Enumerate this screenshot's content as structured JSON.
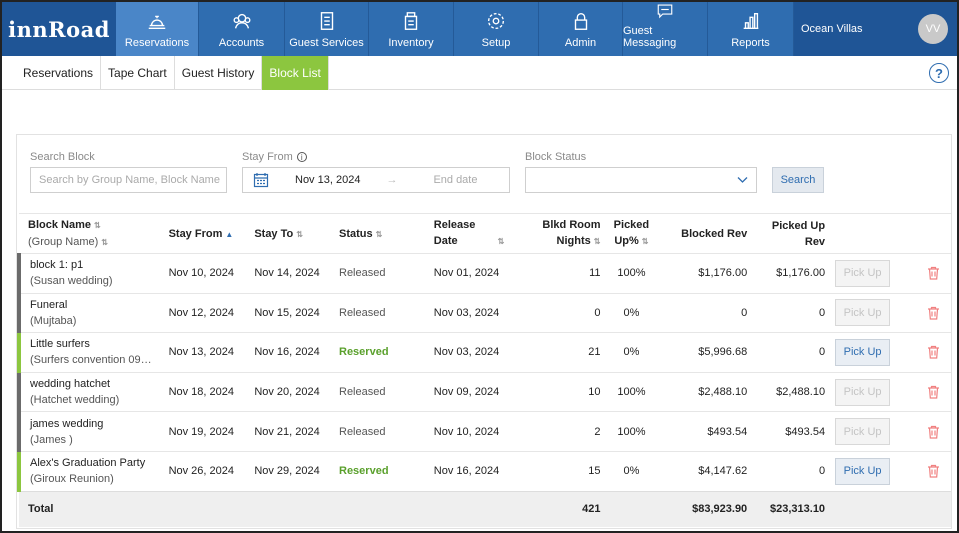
{
  "brand": {
    "logo": "innRoad",
    "property": "Ocean Villas",
    "avatar": "VV",
    "accent": "#2f6db0",
    "green": "#8cc63f"
  },
  "nav": [
    {
      "label": "Reservations",
      "icon": "bell-icon",
      "active": true
    },
    {
      "label": "Accounts",
      "icon": "accounts-icon"
    },
    {
      "label": "Guest Services",
      "icon": "clipboard-icon"
    },
    {
      "label": "Inventory",
      "icon": "inventory-icon"
    },
    {
      "label": "Setup",
      "icon": "gear-icon"
    },
    {
      "label": "Admin",
      "icon": "lock-icon"
    },
    {
      "label": "Guest Messaging",
      "icon": "chat-icon"
    },
    {
      "label": "Reports",
      "icon": "bar-chart-icon"
    }
  ],
  "subnav": [
    "Reservations",
    "Tape Chart",
    "Guest History",
    "Block List"
  ],
  "subnav_active": "Block List",
  "help": "?",
  "filters": {
    "search_label": "Search Block",
    "search_placeholder": "Search by Group Name, Block Name",
    "stay_label": "Stay From",
    "info": "i",
    "start_date": "Nov 13, 2024",
    "arrow": "→",
    "end_placeholder": "End date",
    "status_label": "Block Status",
    "status_value": "",
    "search_button": "Search"
  },
  "columns": {
    "block_name": "Block Name",
    "group_name": "(Group Name)",
    "stay_from": "Stay From",
    "stay_to": "Stay To",
    "status": "Status",
    "release_date_1": "Release",
    "release_date_2": "Date",
    "blkd_1": "Blkd Room",
    "blkd_2": "Nights",
    "picked_1": "Picked",
    "picked_2": "Up%",
    "blocked_rev": "Blocked Rev",
    "picked_rev_1": "Picked Up",
    "picked_rev_2": "Rev"
  },
  "rows": [
    {
      "name": "block 1: p1",
      "group": "(Susan wedding)",
      "from": "Nov 10, 2024",
      "to": "Nov 14, 2024",
      "status": "Released",
      "release": "Nov 01, 2024",
      "nights": "11",
      "picked_pct": "100%",
      "blocked_rev": "$1,176.00",
      "picked_rev": "$1,176.00",
      "pick_label": "Pick Up",
      "enabled": false
    },
    {
      "name": "Funeral",
      "group": "(Mujtaba)",
      "from": "Nov 12, 2024",
      "to": "Nov 15, 2024",
      "status": "Released",
      "release": "Nov 03, 2024",
      "nights": "0",
      "picked_pct": "0%",
      "blocked_rev": "0",
      "picked_rev": "0",
      "pick_label": "Pick Up",
      "enabled": false
    },
    {
      "name": "Little surfers",
      "group": "(Surfers convention 09…",
      "from": "Nov 13, 2024",
      "to": "Nov 16, 2024",
      "status": "Reserved",
      "release": "Nov 03, 2024",
      "nights": "21",
      "picked_pct": "0%",
      "blocked_rev": "$5,996.68",
      "picked_rev": "0",
      "pick_label": "Pick Up",
      "enabled": true
    },
    {
      "name": "wedding hatchet",
      "group": "(Hatchet wedding)",
      "from": "Nov 18, 2024",
      "to": "Nov 20, 2024",
      "status": "Released",
      "release": "Nov 09, 2024",
      "nights": "10",
      "picked_pct": "100%",
      "blocked_rev": "$2,488.10",
      "picked_rev": "$2,488.10",
      "pick_label": "Pick Up",
      "enabled": false
    },
    {
      "name": "james wedding",
      "group": "(James )",
      "from": "Nov 19, 2024",
      "to": "Nov 21, 2024",
      "status": "Released",
      "release": "Nov 10, 2024",
      "nights": "2",
      "picked_pct": "100%",
      "blocked_rev": "$493.54",
      "picked_rev": "$493.54",
      "pick_label": "Pick Up",
      "enabled": false
    },
    {
      "name": "Alex's Graduation Party",
      "group": "(Giroux Reunion)",
      "from": "Nov 26, 2024",
      "to": "Nov 29, 2024",
      "status": "Reserved",
      "release": "Nov 16, 2024",
      "nights": "15",
      "picked_pct": "0%",
      "blocked_rev": "$4,147.62",
      "picked_rev": "0",
      "pick_label": "Pick Up",
      "enabled": true
    }
  ],
  "total": {
    "label": "Total",
    "nights": "421",
    "blocked_rev": "$83,923.90",
    "picked_rev": "$23,313.10"
  }
}
